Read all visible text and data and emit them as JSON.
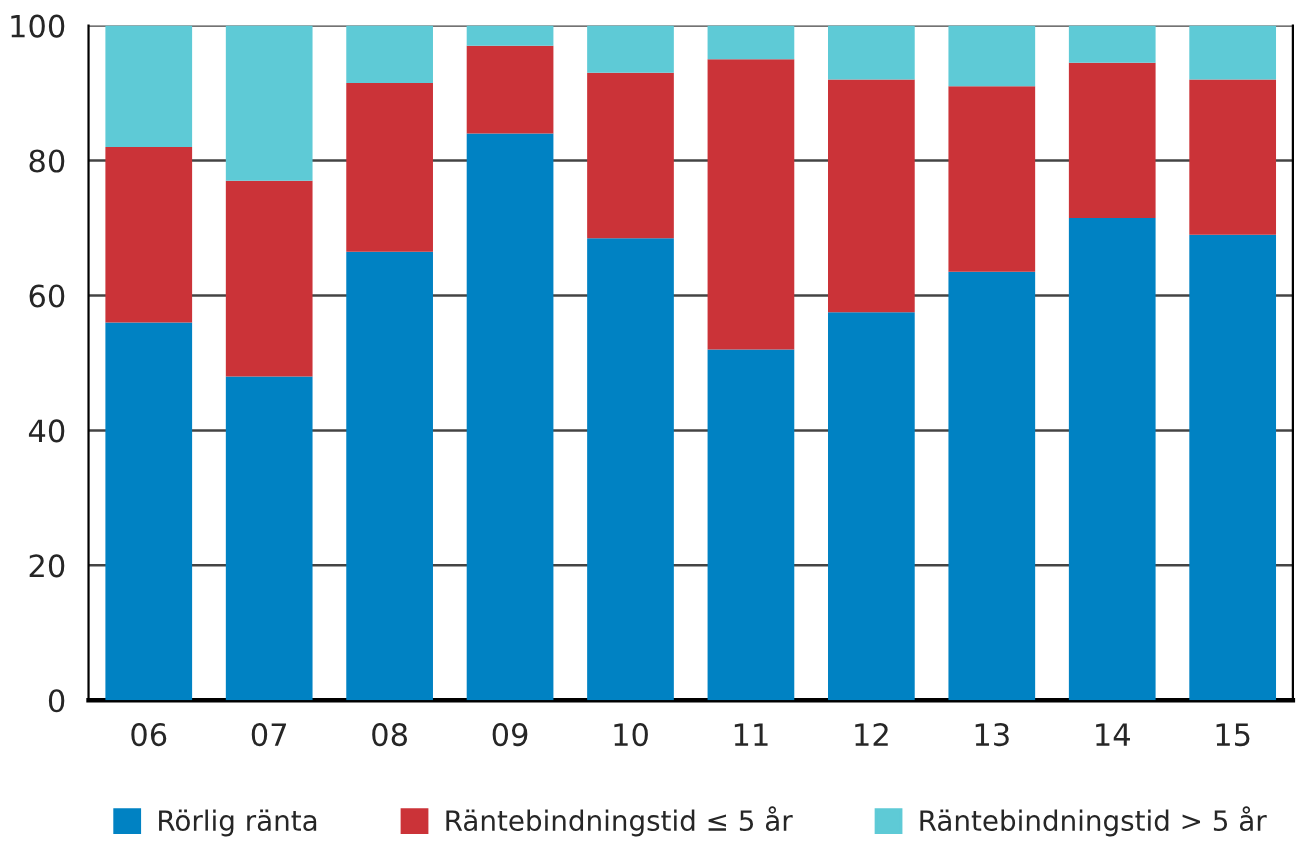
{
  "chart_data": {
    "type": "bar",
    "stacked": true,
    "categories": [
      "06",
      "07",
      "08",
      "09",
      "10",
      "11",
      "12",
      "13",
      "14",
      "15"
    ],
    "series": [
      {
        "name": "Rörlig ränta",
        "color": "#0082c3",
        "values": [
          56,
          48,
          66.5,
          84,
          68.5,
          52,
          57.5,
          63.5,
          71.5,
          69
        ]
      },
      {
        "name": "Räntebindningstid ≤ 5 år",
        "color": "#cb3338",
        "values": [
          26,
          29,
          25,
          13,
          24.5,
          43,
          34.5,
          27.5,
          23,
          23
        ]
      },
      {
        "name": "Räntebindningstid > 5 år",
        "color": "#5ecad6",
        "values": [
          18,
          23,
          8.5,
          3,
          7,
          5,
          8,
          9,
          5.5,
          8
        ]
      }
    ],
    "ylim": [
      0,
      100
    ],
    "yticks": [
      0,
      20,
      40,
      60,
      80,
      100
    ],
    "grid": "y",
    "legend": "bottom"
  }
}
